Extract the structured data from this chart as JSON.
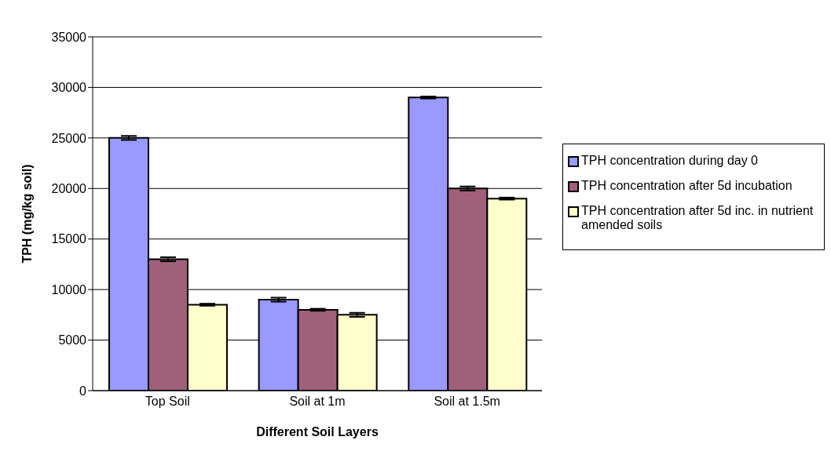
{
  "chart_data": {
    "type": "bar",
    "xlabel": "Different Soil Layers",
    "ylabel": "TPH (mg/kg soil)",
    "categories": [
      "Top Soil",
      "Soil at 1m",
      "Soil at 1.5m"
    ],
    "series": [
      {
        "name": "TPH concentration during day 0",
        "color": "#9999ff",
        "values": [
          25000,
          9000,
          29000
        ],
        "errors": [
          200,
          200,
          100
        ]
      },
      {
        "name": "TPH concentration after 5d incubation",
        "color": "#a0607a",
        "values": [
          13000,
          8000,
          20000
        ],
        "errors": [
          200,
          100,
          200
        ]
      },
      {
        "name": "TPH concentration after 5d inc. in nutrient amended soils",
        "color": "#ffffcc",
        "values": [
          8500,
          7500,
          19000
        ],
        "errors": [
          100,
          200,
          100
        ]
      }
    ],
    "ylim": [
      0,
      35000
    ],
    "yticks": [
      0,
      5000,
      10000,
      15000,
      20000,
      25000,
      30000,
      35000
    ],
    "grid": "y",
    "legend": "right"
  }
}
